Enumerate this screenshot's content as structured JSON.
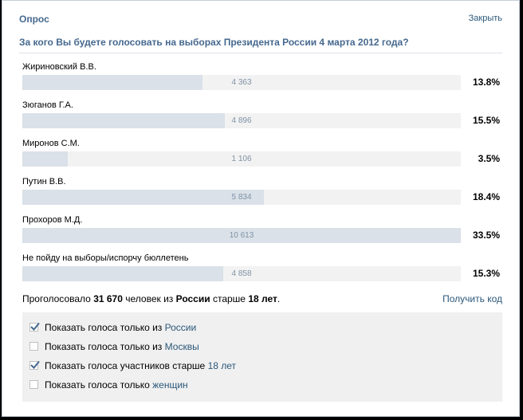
{
  "poll": {
    "title": "Опрос",
    "close_label": "Закрыть",
    "question": "За кого Вы будете голосовать на выборах Президента России 4 марта 2012 года?",
    "options": [
      {
        "label": "Жириновский В.В.",
        "count": "4 363",
        "percent": "13.8%",
        "share": 0.411
      },
      {
        "label": "Зюганов Г.А.",
        "count": "4 896",
        "percent": "15.5%",
        "share": 0.462
      },
      {
        "label": "Миронов С.М.",
        "count": "1 106",
        "percent": "3.5%",
        "share": 0.104
      },
      {
        "label": "Путин В.В.",
        "count": "5 834",
        "percent": "18.4%",
        "share": 0.55
      },
      {
        "label": "Прохоров М.Д.",
        "count": "10 613",
        "percent": "33.5%",
        "share": 1.0
      },
      {
        "label": "Не пойду на выборы/испорчу бюллетень",
        "count": "4 858",
        "percent": "15.3%",
        "share": 0.458
      }
    ],
    "summary": {
      "prefix": "Проголосовало",
      "total": "31 670",
      "middle": "человек из",
      "country": "России",
      "age_prefix": "старше",
      "age": "18 лет",
      "end": "."
    },
    "get_code_label": "Получить код",
    "filters": [
      {
        "text": "Показать голоса только из",
        "link": "России",
        "checked": true
      },
      {
        "text": "Показать голоса только из",
        "link": "Москвы",
        "checked": false
      },
      {
        "text": "Показать голоса участников старше",
        "link": "18 лет",
        "checked": true
      },
      {
        "text": "Показать голоса только",
        "link": "женщин",
        "checked": false
      }
    ]
  },
  "colors": {
    "accent": "#45688e",
    "link": "#2b587a",
    "bar_fill": "#dae1e8",
    "bar_track": "#f2f2f2",
    "count_text": "#7f93a6"
  }
}
